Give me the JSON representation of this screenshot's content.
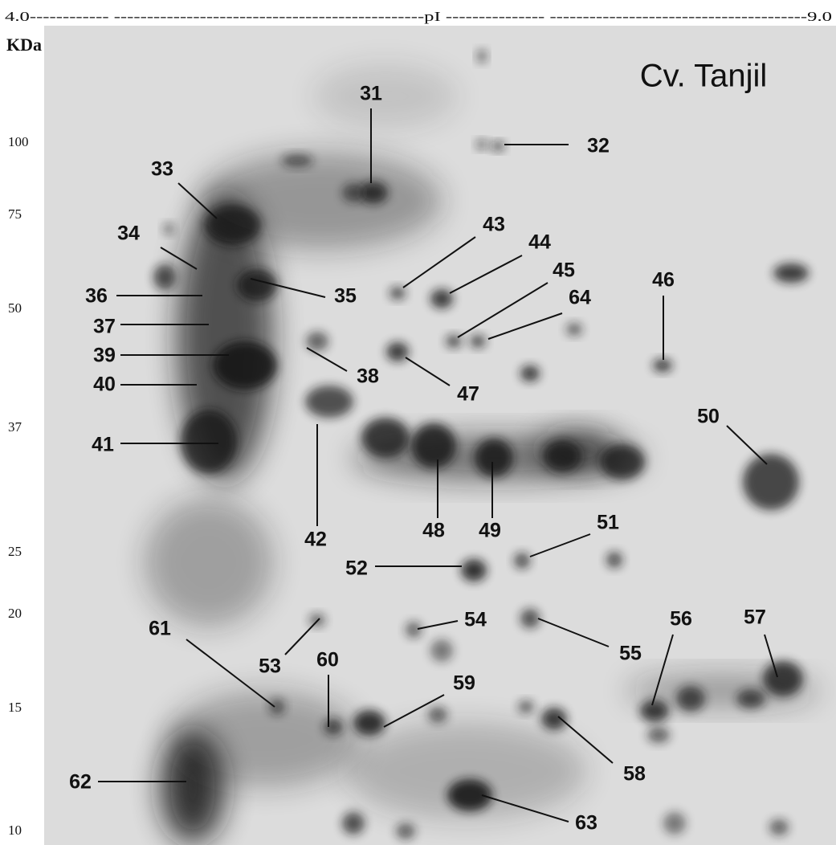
{
  "header": {
    "top_axis": "4.0------------ -----------------------------------------------pI --------------- ---------------------------------------9.0",
    "kda_label": "KDa",
    "title": "Cv. Tanjil"
  },
  "mw_markers": [
    "100",
    "75",
    "50",
    "37",
    "25",
    "20",
    "15",
    "10"
  ],
  "spots": [
    "31",
    "32",
    "33",
    "34",
    "36",
    "35",
    "43",
    "44",
    "45",
    "64",
    "46",
    "37",
    "39",
    "38",
    "47",
    "40",
    "41",
    "42",
    "50",
    "48",
    "49",
    "51",
    "52",
    "61",
    "53",
    "60",
    "54",
    "55",
    "56",
    "57",
    "59",
    "58",
    "62",
    "63"
  ]
}
